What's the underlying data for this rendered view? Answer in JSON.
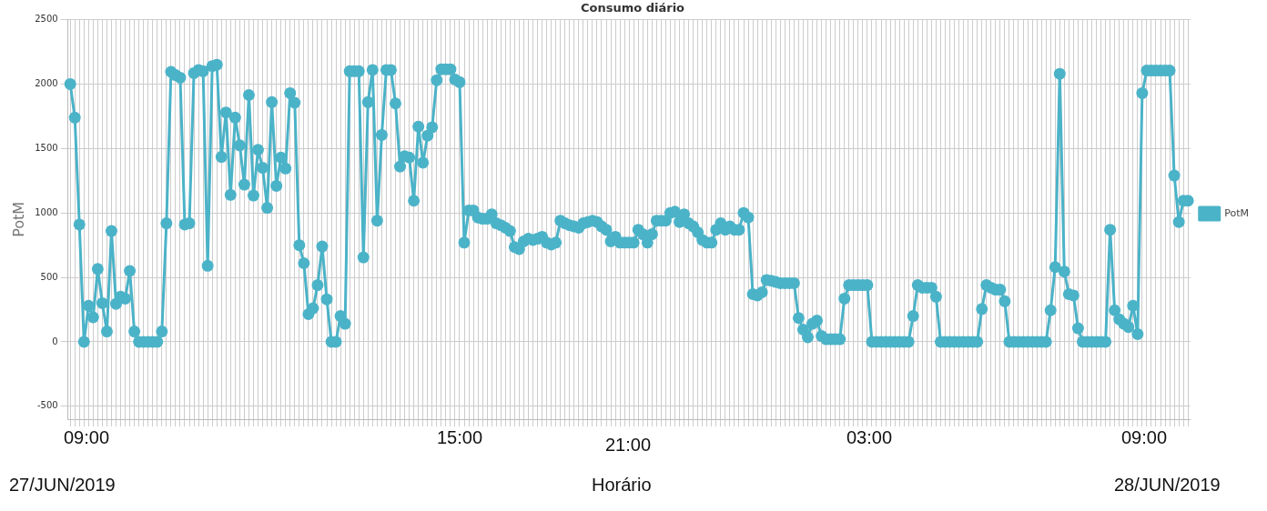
{
  "chart_data": {
    "type": "line",
    "title": "Consumo diário",
    "ylabel": "PotM",
    "xlabel": "Horário",
    "categories": [
      null,
      null,
      null,
      null,
      null,
      null,
      null,
      null,
      null,
      null,
      null,
      null,
      null,
      null,
      null,
      null,
      null,
      null,
      null,
      null,
      null,
      null,
      null,
      null,
      null,
      null,
      null,
      null,
      null,
      null,
      null,
      null,
      null,
      null,
      null,
      null,
      null,
      null,
      null,
      null,
      null,
      null,
      null,
      null,
      null,
      null,
      null,
      null,
      null,
      null,
      null,
      null,
      null,
      null,
      null,
      null,
      null,
      null,
      null,
      null,
      null,
      null,
      null,
      null,
      null,
      null,
      null,
      null,
      null,
      null,
      null,
      null,
      null,
      null,
      null,
      null,
      null,
      null,
      null,
      null,
      null,
      null,
      null,
      null,
      null,
      null,
      null,
      null,
      null,
      null,
      null,
      null,
      null,
      null,
      null,
      null,
      null,
      null,
      null,
      null,
      null,
      null,
      null,
      null,
      null,
      null,
      null,
      null,
      null,
      null,
      null,
      null,
      null,
      null,
      null,
      null,
      null,
      null,
      null,
      null,
      null,
      null,
      null,
      null,
      null,
      null,
      null,
      null,
      null,
      null,
      null,
      null,
      null,
      null,
      null,
      null,
      null,
      null,
      null,
      null,
      null,
      null,
      null,
      null,
      null,
      null,
      null,
      null,
      null,
      null,
      null,
      null,
      null,
      null,
      null,
      null,
      null,
      null,
      null,
      null,
      null,
      null,
      null,
      null,
      null,
      null,
      null,
      null,
      null,
      null,
      null,
      null,
      null,
      null,
      null,
      null,
      null,
      null,
      null,
      null,
      null,
      null,
      null,
      null,
      null,
      null,
      null,
      null,
      null,
      null,
      null,
      null,
      null,
      null,
      null,
      null,
      null,
      null,
      null,
      null,
      null,
      null,
      null,
      null,
      null,
      null,
      null,
      null,
      null,
      null,
      null,
      null,
      null,
      null,
      null,
      null,
      null,
      null,
      null,
      null,
      null,
      null,
      null,
      null,
      null,
      null,
      null,
      null,
      null,
      null,
      null,
      null,
      null,
      null,
      null,
      null,
      null,
      null,
      null,
      null,
      null,
      null,
      null,
      null,
      null
    ],
    "series": [
      {
        "name": "PotM",
        "color": "#4bb3c8",
        "values": [
          2000,
          1740,
          910,
          0,
          280,
          190,
          565,
          300,
          80,
          860,
          295,
          350,
          335,
          550,
          80,
          0,
          0,
          0,
          0,
          0,
          80,
          920,
          2095,
          2070,
          2050,
          910,
          920,
          2085,
          2110,
          2100,
          590,
          2140,
          2150,
          1435,
          1780,
          1140,
          1740,
          1525,
          1220,
          1915,
          1135,
          1490,
          1350,
          1040,
          1860,
          1210,
          1430,
          1345,
          1930,
          1855,
          750,
          610,
          215,
          260,
          440,
          740,
          330,
          0,
          0,
          200,
          140,
          2100,
          2100,
          2100,
          655,
          1860,
          2110,
          940,
          1605,
          2110,
          2110,
          1850,
          1360,
          1440,
          1430,
          1095,
          1670,
          1390,
          1600,
          1665,
          2030,
          2115,
          2115,
          2115,
          2035,
          2015,
          770,
          1020,
          1020,
          965,
          955,
          955,
          990,
          920,
          905,
          885,
          860,
          735,
          720,
          780,
          800,
          790,
          800,
          815,
          770,
          755,
          770,
          940,
          920,
          905,
          895,
          885,
          920,
          930,
          940,
          930,
          895,
          870,
          780,
          815,
          770,
          770,
          770,
          770,
          870,
          835,
          770,
          835,
          940,
          940,
          940,
          1000,
          1010,
          930,
          990,
          920,
          895,
          850,
          790,
          770,
          770,
          870,
          920,
          870,
          895,
          870,
          870,
          1000,
          965,
          370,
          360,
          385,
          480,
          475,
          465,
          455,
          455,
          455,
          455,
          185,
          95,
          35,
          140,
          165,
          45,
          20,
          20,
          20,
          20,
          335,
          440,
          440,
          440,
          440,
          440,
          0,
          0,
          0,
          0,
          0,
          0,
          0,
          0,
          0,
          200,
          440,
          420,
          420,
          420,
          350,
          0,
          0,
          0,
          0,
          0,
          0,
          0,
          0,
          0,
          255,
          440,
          420,
          405,
          405,
          315,
          0,
          0,
          0,
          0,
          0,
          0,
          0,
          0,
          0,
          245,
          580,
          2080,
          545,
          370,
          360,
          105,
          0,
          0,
          0,
          0,
          0,
          0,
          870,
          245,
          175,
          140,
          115,
          280,
          60,
          1930,
          2105,
          2105,
          2105,
          2105,
          2105,
          2105,
          1290,
          930,
          1095,
          1095
        ]
      }
    ],
    "ylim": [
      -600,
      2500
    ],
    "yticks": [
      -500,
      0,
      500,
      1000,
      1500,
      2000,
      2500
    ],
    "grid": true,
    "legend": "right",
    "marker": "circle",
    "line_style": "solid",
    "tick_labels": "y",
    "annotations": [
      "09:00",
      "15:00",
      "21:00",
      "03:00",
      "09:00",
      "27/JUN/2019",
      "28/JUN/2019"
    ]
  }
}
